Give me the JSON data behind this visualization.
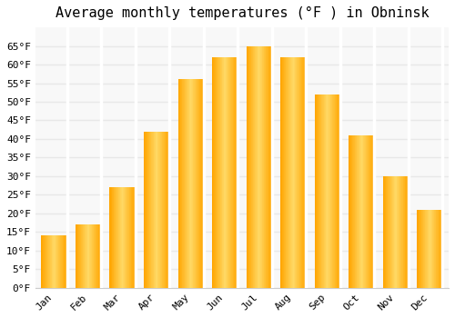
{
  "title": "Average monthly temperatures (°F ) in Obninsk",
  "months": [
    "Jan",
    "Feb",
    "Mar",
    "Apr",
    "May",
    "Jun",
    "Jul",
    "Aug",
    "Sep",
    "Oct",
    "Nov",
    "Dec"
  ],
  "values": [
    14,
    17,
    27,
    42,
    56,
    62,
    65,
    62,
    52,
    41,
    30,
    21
  ],
  "bar_color_center": "#FFD966",
  "bar_color_edge": "#FFA500",
  "ylim": [
    0,
    70
  ],
  "yticks": [
    0,
    5,
    10,
    15,
    20,
    25,
    30,
    35,
    40,
    45,
    50,
    55,
    60,
    65
  ],
  "ytick_labels": [
    "0°F",
    "5°F",
    "10°F",
    "15°F",
    "20°F",
    "25°F",
    "30°F",
    "35°F",
    "40°F",
    "45°F",
    "50°F",
    "55°F",
    "60°F",
    "65°F"
  ],
  "background_color": "#ffffff",
  "plot_bg_color": "#f8f8f8",
  "grid_color": "#e8e8e8",
  "title_fontsize": 11,
  "tick_fontsize": 8,
  "bar_width": 0.75
}
